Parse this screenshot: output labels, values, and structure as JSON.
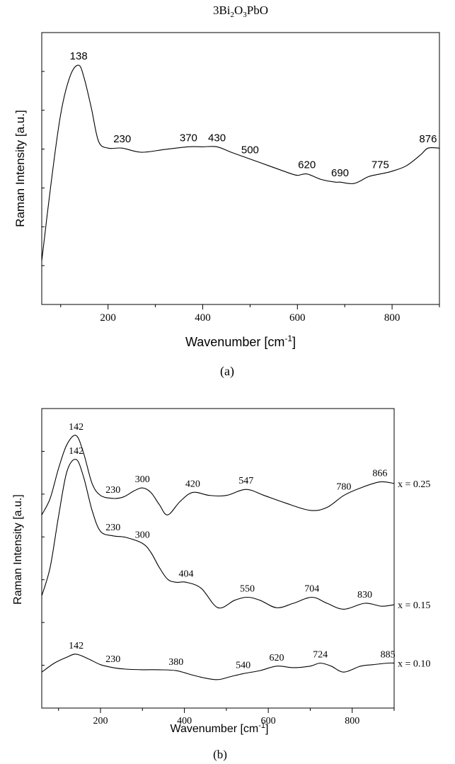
{
  "chart_data": [
    {
      "type": "line",
      "title_parts": [
        "3Bi",
        "2",
        "O",
        "3",
        "PbO"
      ],
      "xlabel": "Wavenumber [cm",
      "xlabel_sup": "-1",
      "xlabel_end": "]",
      "ylabel": "Raman Intensity [a.u.]",
      "caption": "(a)",
      "xlim": [
        60,
        900
      ],
      "ylim": [
        0,
        1
      ],
      "xticks": [
        200,
        400,
        600,
        800
      ],
      "series": [
        {
          "x": [
            60,
            80,
            100,
            120,
            138,
            150,
            165,
            180,
            200,
            230,
            270,
            320,
            370,
            400,
            430,
            460,
            500,
            540,
            580,
            600,
            620,
            650,
            680,
            690,
            720,
            750,
            775,
            800,
            830,
            860,
            876,
            900
          ],
          "y": [
            0.16,
            0.45,
            0.7,
            0.84,
            0.88,
            0.83,
            0.72,
            0.6,
            0.575,
            0.575,
            0.56,
            0.57,
            0.58,
            0.58,
            0.58,
            0.56,
            0.535,
            0.51,
            0.485,
            0.475,
            0.48,
            0.46,
            0.45,
            0.45,
            0.445,
            0.47,
            0.48,
            0.49,
            0.51,
            0.55,
            0.575,
            0.575
          ]
        }
      ],
      "annotations": [
        {
          "x": 138,
          "y": 0.88,
          "label": "138"
        },
        {
          "x": 230,
          "y": 0.575,
          "label": "230"
        },
        {
          "x": 370,
          "y": 0.58,
          "label": "370"
        },
        {
          "x": 430,
          "y": 0.58,
          "label": "430"
        },
        {
          "x": 500,
          "y": 0.535,
          "label": "500"
        },
        {
          "x": 620,
          "y": 0.48,
          "label": "620"
        },
        {
          "x": 690,
          "y": 0.45,
          "label": "690"
        },
        {
          "x": 775,
          "y": 0.48,
          "label": "775"
        },
        {
          "x": 876,
          "y": 0.575,
          "label": "876"
        }
      ]
    },
    {
      "type": "line",
      "xlabel": "Wavenumber [cm",
      "xlabel_sup": "-1",
      "xlabel_end": "]",
      "ylabel": "Raman Intensity [a.u.]",
      "caption": "(b)",
      "xlim": [
        60,
        900
      ],
      "ylim": [
        0,
        1
      ],
      "xticks": [
        200,
        400,
        600,
        800
      ],
      "series": [
        {
          "name": "x = 0.25",
          "x": [
            60,
            80,
            100,
            120,
            142,
            160,
            180,
            200,
            230,
            255,
            280,
            300,
            320,
            340,
            360,
            390,
            420,
            460,
            500,
            547,
            590,
            640,
            700,
            740,
            780,
            820,
            866,
            900
          ],
          "y": [
            0.645,
            0.7,
            0.8,
            0.88,
            0.91,
            0.85,
            0.75,
            0.71,
            0.7,
            0.705,
            0.725,
            0.735,
            0.72,
            0.68,
            0.645,
            0.69,
            0.72,
            0.71,
            0.71,
            0.73,
            0.71,
            0.685,
            0.66,
            0.67,
            0.71,
            0.735,
            0.755,
            0.75
          ]
        },
        {
          "name": "x = 0.15",
          "x": [
            60,
            80,
            100,
            120,
            142,
            160,
            180,
            200,
            230,
            260,
            300,
            320,
            340,
            360,
            380,
            404,
            440,
            480,
            520,
            550,
            580,
            620,
            660,
            704,
            740,
            780,
            830,
            870,
            900
          ],
          "y": [
            0.375,
            0.47,
            0.64,
            0.79,
            0.83,
            0.77,
            0.66,
            0.59,
            0.575,
            0.57,
            0.55,
            0.52,
            0.47,
            0.43,
            0.42,
            0.42,
            0.4,
            0.335,
            0.36,
            0.37,
            0.36,
            0.335,
            0.35,
            0.37,
            0.35,
            0.33,
            0.35,
            0.34,
            0.345
          ]
        },
        {
          "name": "x = 0.10",
          "x": [
            60,
            90,
            120,
            142,
            170,
            200,
            230,
            260,
            300,
            340,
            380,
            420,
            450,
            480,
            510,
            540,
            580,
            620,
            660,
            700,
            724,
            750,
            780,
            820,
            850,
            885,
            900
          ],
          "y": [
            0.12,
            0.15,
            0.17,
            0.18,
            0.165,
            0.145,
            0.135,
            0.13,
            0.128,
            0.128,
            0.125,
            0.11,
            0.1,
            0.095,
            0.105,
            0.115,
            0.125,
            0.14,
            0.135,
            0.14,
            0.15,
            0.14,
            0.12,
            0.14,
            0.145,
            0.15,
            0.15
          ]
        }
      ],
      "annotations": [
        {
          "x": 142,
          "y": 0.91,
          "label": "142"
        },
        {
          "x": 230,
          "y": 0.7,
          "label": "230"
        },
        {
          "x": 300,
          "y": 0.735,
          "label": "300"
        },
        {
          "x": 420,
          "y": 0.72,
          "label": "420"
        },
        {
          "x": 547,
          "y": 0.73,
          "label": "547"
        },
        {
          "x": 780,
          "y": 0.71,
          "label": "780"
        },
        {
          "x": 866,
          "y": 0.755,
          "label": "866"
        },
        {
          "x": 142,
          "y": 0.83,
          "label": "142"
        },
        {
          "x": 230,
          "y": 0.575,
          "label": "230"
        },
        {
          "x": 300,
          "y": 0.55,
          "label": "300"
        },
        {
          "x": 404,
          "y": 0.42,
          "label": "404"
        },
        {
          "x": 550,
          "y": 0.37,
          "label": "550"
        },
        {
          "x": 704,
          "y": 0.37,
          "label": "704"
        },
        {
          "x": 830,
          "y": 0.35,
          "label": "830"
        },
        {
          "x": 142,
          "y": 0.18,
          "label": "142"
        },
        {
          "x": 230,
          "y": 0.135,
          "label": "230"
        },
        {
          "x": 380,
          "y": 0.125,
          "label": "380"
        },
        {
          "x": 540,
          "y": 0.115,
          "label": "540"
        },
        {
          "x": 620,
          "y": 0.14,
          "label": "620"
        },
        {
          "x": 724,
          "y": 0.15,
          "label": "724"
        },
        {
          "x": 885,
          "y": 0.15,
          "label": "885"
        }
      ]
    }
  ]
}
